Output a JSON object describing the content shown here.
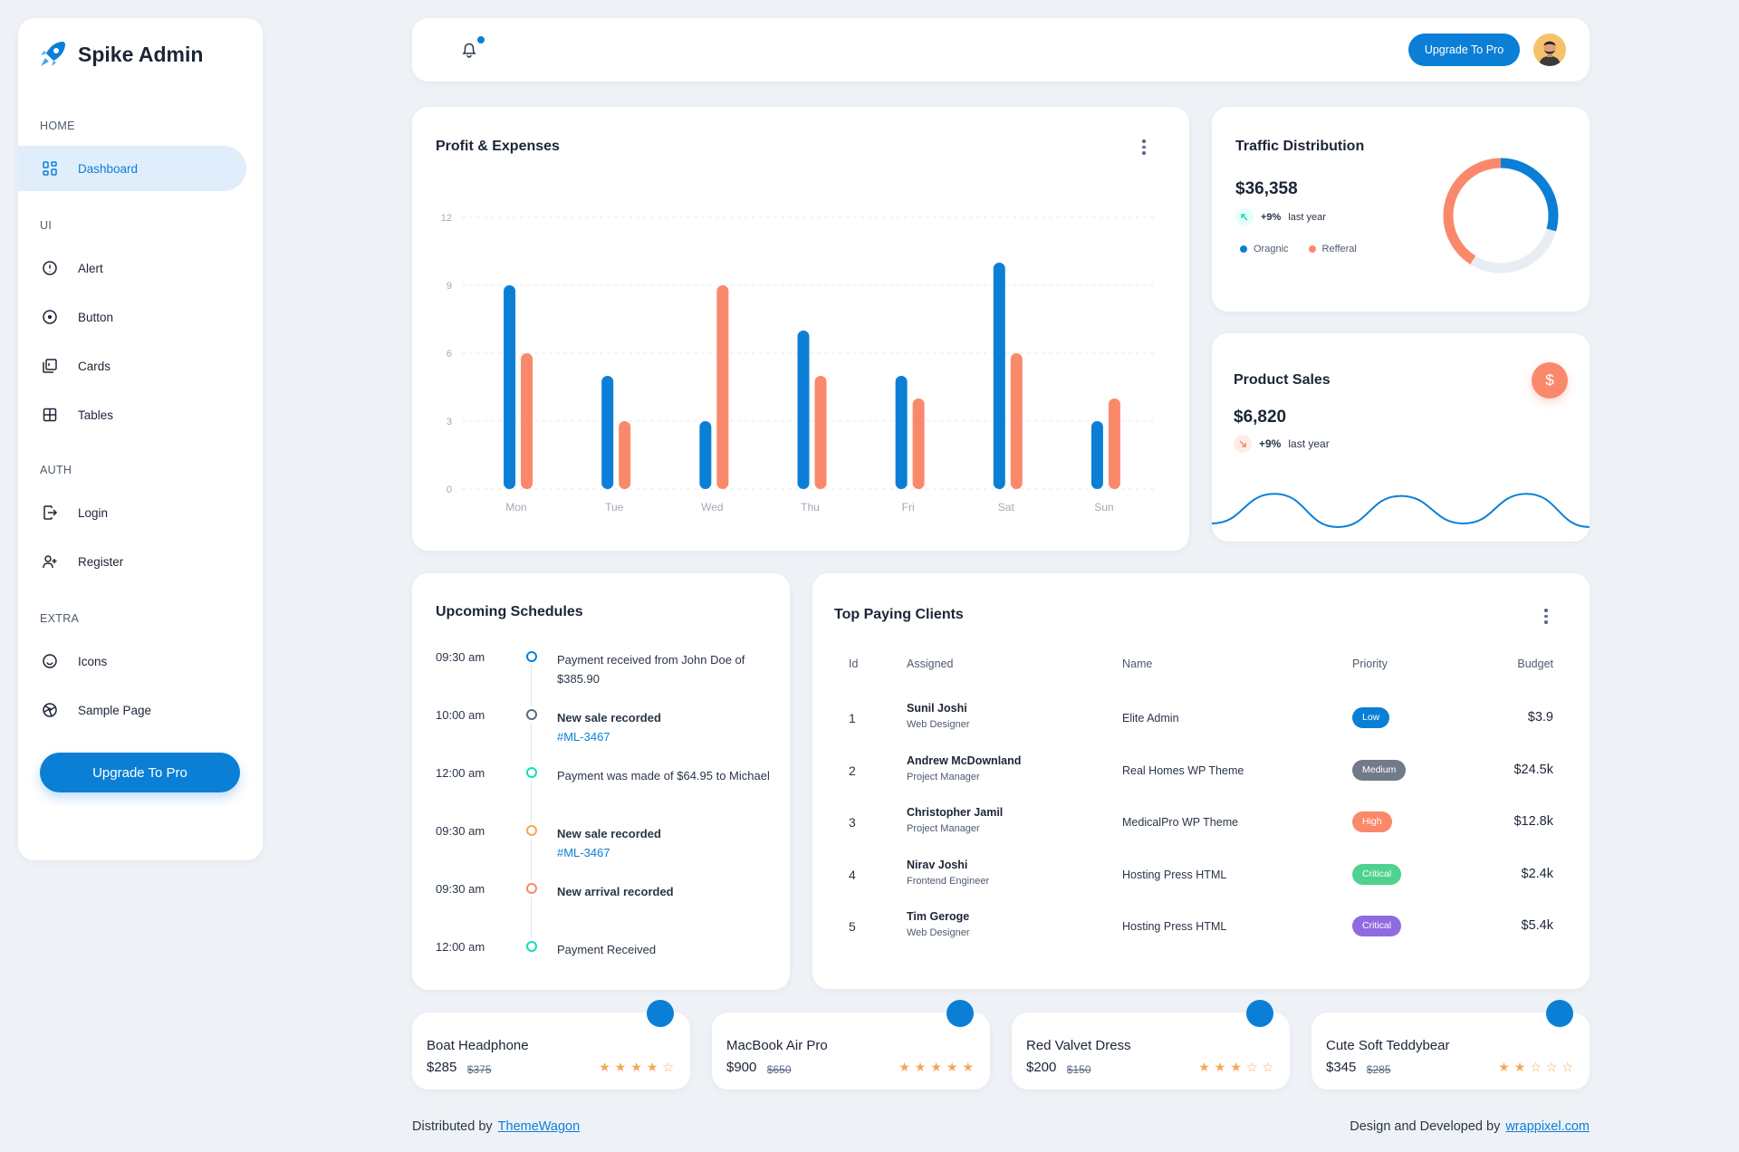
{
  "brand": {
    "title": "Spike Admin"
  },
  "sidebar": {
    "sections": [
      {
        "label": "HOME",
        "items": [
          {
            "label": "Dashboard",
            "icon": "layout-dashboard-icon",
            "active": true
          }
        ]
      },
      {
        "label": "UI",
        "items": [
          {
            "label": "Alert",
            "icon": "alert-circle-icon"
          },
          {
            "label": "Button",
            "icon": "circle-dot-icon"
          },
          {
            "label": "Cards",
            "icon": "cards-icon"
          },
          {
            "label": "Tables",
            "icon": "table-icon"
          }
        ]
      },
      {
        "label": "AUTH",
        "items": [
          {
            "label": "Login",
            "icon": "login-icon"
          },
          {
            "label": "Register",
            "icon": "user-plus-icon"
          }
        ]
      },
      {
        "label": "EXTRA",
        "items": [
          {
            "label": "Icons",
            "icon": "mood-happy-icon"
          },
          {
            "label": "Sample Page",
            "icon": "aperture-icon"
          }
        ]
      }
    ],
    "upgrade_label": "Upgrade To Pro"
  },
  "header": {
    "upgrade_label": "Upgrade To Pro"
  },
  "profit": {
    "title": "Profit & Expenses",
    "chart_data": {
      "type": "bar",
      "categories": [
        "Mon",
        "Tue",
        "Wed",
        "Thu",
        "Fri",
        "Sat",
        "Sun"
      ],
      "series": [
        {
          "values": [
            9,
            5,
            3,
            7,
            5,
            10,
            3
          ],
          "color": "#0b7fd6"
        },
        {
          "values": [
            6,
            3,
            9,
            5,
            4,
            6,
            4
          ],
          "color": "#fa896b"
        }
      ],
      "yticks": [
        0,
        3,
        6,
        9,
        12
      ],
      "ylim": [
        0,
        12
      ],
      "grid": true
    }
  },
  "traffic": {
    "title": "Traffic Distribution",
    "amount": "$36,358",
    "change": "+9%",
    "period": "last year",
    "legend": [
      {
        "label": "Oragnic",
        "color": "#0b7fd6"
      },
      {
        "label": "Refferal",
        "color": "#fa896b"
      }
    ],
    "chart_data": {
      "type": "pie",
      "slices": [
        {
          "label": "Oragnic",
          "value": 25,
          "color": "#0b7fd6"
        },
        {
          "label": "Unlabeled",
          "value": 25,
          "color": "#e8edf3"
        },
        {
          "label": "Refferal",
          "value": 35,
          "color": "#fa896b"
        }
      ]
    }
  },
  "sales": {
    "title": "Product Sales",
    "amount": "$6,820",
    "change": "+9%",
    "period": "last year",
    "badge_symbol": "$",
    "chart_data": {
      "type": "line",
      "values": [
        25,
        66,
        20,
        63,
        25,
        66,
        20
      ],
      "color": "#0b7fd6"
    }
  },
  "schedules": {
    "title": "Upcoming Schedules",
    "items": [
      {
        "time": "09:30 am",
        "text": "Payment received from John Doe of $385.90",
        "bold": false,
        "link": "",
        "color": "#0b7fd6"
      },
      {
        "time": "10:00 am",
        "text": "New sale recorded",
        "bold": true,
        "link": "#ML-3467",
        "color": "#5a6a85"
      },
      {
        "time": "12:00 am",
        "text": "Payment was made of $64.95 to Michael",
        "bold": false,
        "link": "",
        "color": "#13deb9"
      },
      {
        "time": "09:30 am",
        "text": "New sale recorded",
        "bold": true,
        "link": "#ML-3467",
        "color": "#f3a853"
      },
      {
        "time": "09:30 am",
        "text": "New arrival recorded",
        "bold": true,
        "link": "",
        "color": "#fa896b"
      },
      {
        "time": "12:00 am",
        "text": "Payment Received",
        "bold": false,
        "link": "",
        "color": "#13deb9"
      }
    ]
  },
  "clients": {
    "title": "Top Paying Clients",
    "columns": [
      "Id",
      "Assigned",
      "Name",
      "Priority",
      "Budget"
    ],
    "rows": [
      {
        "id": "1",
        "assigned": "Sunil Joshi",
        "role": "Web Designer",
        "name": "Elite Admin",
        "priority": "Low",
        "priority_color": "#0b7fd6",
        "budget": "$3.9"
      },
      {
        "id": "2",
        "assigned": "Andrew McDownland",
        "role": "Project Manager",
        "name": "Real Homes WP Theme",
        "priority": "Medium",
        "priority_color": "#707a89",
        "budget": "$24.5k"
      },
      {
        "id": "3",
        "assigned": "Christopher Jamil",
        "role": "Project Manager",
        "name": "MedicalPro WP Theme",
        "priority": "High",
        "priority_color": "#fa896b",
        "budget": "$12.8k"
      },
      {
        "id": "4",
        "assigned": "Nirav Joshi",
        "role": "Frontend Engineer",
        "name": "Hosting Press HTML",
        "priority": "Critical",
        "priority_color": "#4fd28f",
        "budget": "$2.4k"
      },
      {
        "id": "5",
        "assigned": "Tim Geroge",
        "role": "Web Designer",
        "name": "Hosting Press HTML",
        "priority": "Critical",
        "priority_color": "#8e6be0",
        "budget": "$5.4k"
      }
    ]
  },
  "products": [
    {
      "name": "Boat Headphone",
      "price": "$285",
      "old_price": "$375",
      "rating": 4
    },
    {
      "name": "MacBook Air Pro",
      "price": "$900",
      "old_price": "$650",
      "rating": 5
    },
    {
      "name": "Red Valvet Dress",
      "price": "$200",
      "old_price": "$150",
      "rating": 3
    },
    {
      "name": "Cute Soft Teddybear",
      "price": "$345",
      "old_price": "$285",
      "rating": 2
    }
  ],
  "footer": {
    "left_text": "Distributed by",
    "left_link": "ThemeWagon",
    "right_text": "Design and Developed by",
    "right_link": "wrappixel.com"
  }
}
